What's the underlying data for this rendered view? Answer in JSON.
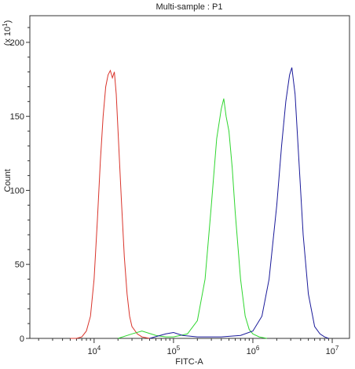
{
  "chart_data": {
    "type": "line",
    "title": "Multi-sample : P1",
    "x_label": "FITC-A",
    "y_label": "Count",
    "y_multiplier": {
      "prefix": "(x 10",
      "exponent": "1",
      "suffix": ")"
    },
    "xscale": "log",
    "xlim": [
      1550,
      16500000
    ],
    "ylim": [
      0,
      218
    ],
    "xticks": [
      {
        "value": 10000,
        "label": "10",
        "exponent": "4"
      },
      {
        "value": 100000,
        "label": "10",
        "exponent": "5"
      },
      {
        "value": 1000000,
        "label": "10",
        "exponent": "6"
      },
      {
        "value": 10000000,
        "label": "10",
        "exponent": "7"
      }
    ],
    "minor_xticks": [
      2000,
      3000,
      4000,
      5000,
      6000,
      7000,
      8000,
      9000,
      20000,
      30000,
      40000,
      50000,
      60000,
      70000,
      80000,
      90000,
      200000,
      300000,
      400000,
      500000,
      600000,
      700000,
      800000,
      900000,
      2000000,
      3000000,
      4000000,
      5000000,
      6000000,
      7000000,
      8000000,
      9000000
    ],
    "yticks": [
      0,
      50,
      100,
      150,
      200
    ],
    "minor_yticks": [
      10,
      20,
      30,
      40,
      60,
      70,
      80,
      90,
      110,
      120,
      130,
      140,
      160,
      170,
      180,
      190,
      210
    ],
    "series": [
      {
        "color": "#d9342b",
        "x": [
          5000,
          6000,
          7000,
          8000,
          9000,
          10000,
          11000,
          12000,
          13000,
          14000,
          15000,
          16000,
          17000,
          18000,
          19000,
          20000,
          22000,
          24000,
          26000,
          28000,
          30000,
          35000,
          40000,
          50000
        ],
        "values": [
          0,
          0,
          1,
          5,
          15,
          40,
          80,
          120,
          150,
          170,
          178,
          181,
          176,
          180,
          165,
          140,
          95,
          55,
          30,
          15,
          8,
          3,
          1,
          0
        ]
      },
      {
        "color": "#2fd62f",
        "x": [
          20000,
          30000,
          40000,
          60000,
          80000,
          100000,
          150000,
          200000,
          250000,
          300000,
          350000,
          400000,
          430000,
          460000,
          500000,
          550000,
          600000,
          700000,
          800000,
          900000,
          1000000,
          1200000,
          1500000
        ],
        "values": [
          0,
          3,
          5,
          2,
          1,
          1,
          3,
          12,
          40,
          90,
          135,
          155,
          162,
          150,
          140,
          115,
          85,
          40,
          15,
          6,
          3,
          1,
          0
        ]
      },
      {
        "color": "#1a1a9a",
        "x": [
          50000,
          80000,
          100000,
          130000,
          200000,
          400000,
          700000,
          1000000,
          1300000,
          1600000,
          2000000,
          2300000,
          2600000,
          2900000,
          3100000,
          3400000,
          3800000,
          4300000,
          5000000,
          6000000,
          7000000,
          8000000,
          9000000
        ],
        "values": [
          0,
          3,
          4,
          2,
          1,
          1,
          2,
          5,
          15,
          40,
          90,
          130,
          160,
          178,
          183,
          165,
          120,
          70,
          30,
          8,
          3,
          1,
          0
        ]
      }
    ]
  }
}
